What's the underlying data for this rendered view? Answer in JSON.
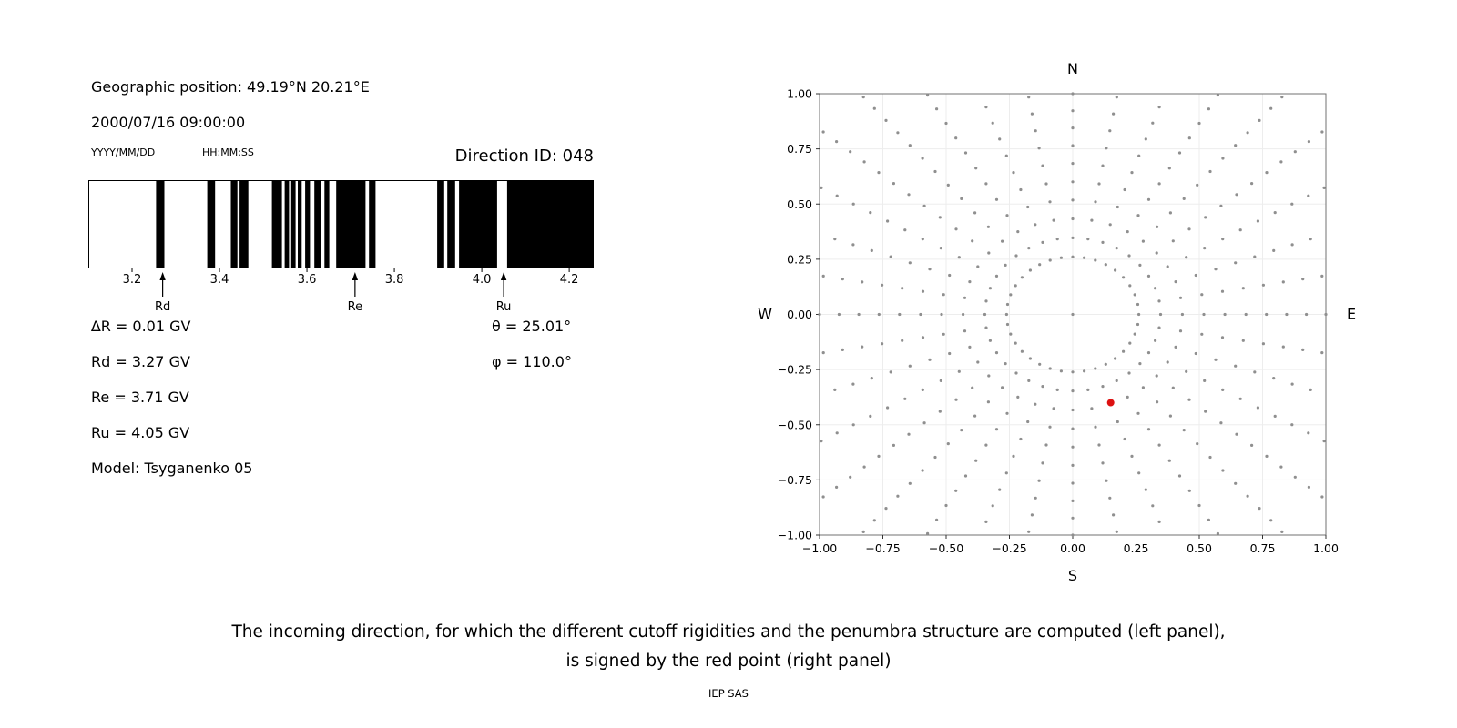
{
  "left_panel": {
    "geo_position": "Geographic position: 49.19°N 20.21°E",
    "datetime": "2000/07/16 09:00:00",
    "date_format_label": "YYYY/MM/DD",
    "time_format_label": "HH:MM:SS",
    "direction_id_title": "Direction ID: 048",
    "params_left": [
      "∆R = 0.01 GV",
      "Rd = 3.27 GV",
      "Re = 3.71 GV",
      "Ru = 4.05 GV",
      "Model: Tsyganenko 05"
    ],
    "params_right": [
      "θ = 25.01°",
      "φ = 110.0°"
    ]
  },
  "caption": {
    "line1": "The incoming direction, for which the different cutoff rigidities and the penumbra structure are computed (left panel),",
    "line2": "is signed by the red point (right panel)"
  },
  "footer_credit": "IEP SAS",
  "chart_data": [
    {
      "type": "bar",
      "title": "Direction ID: 048",
      "description": "Penumbra structure: black bands mark forbidden rigidity intervals in GV",
      "xlim": [
        3.1,
        4.256
      ],
      "xticks": [
        3.2,
        3.4,
        3.6,
        3.8,
        4.0,
        4.2
      ],
      "xtick_labels": [
        "3.2",
        "3.4",
        "3.6",
        "3.8",
        "4.0",
        "4.2"
      ],
      "black_bands_gv": [
        [
          3.255,
          3.274
        ],
        [
          3.372,
          3.39
        ],
        [
          3.426,
          3.441
        ],
        [
          3.446,
          3.466
        ],
        [
          3.52,
          3.543
        ],
        [
          3.549,
          3.559
        ],
        [
          3.564,
          3.574
        ],
        [
          3.579,
          3.588
        ],
        [
          3.596,
          3.607
        ],
        [
          3.617,
          3.632
        ],
        [
          3.64,
          3.651
        ],
        [
          3.667,
          3.734
        ],
        [
          3.742,
          3.757
        ],
        [
          3.898,
          3.914
        ],
        [
          3.921,
          3.939
        ],
        [
          3.948,
          4.035
        ],
        [
          4.058,
          4.256
        ]
      ],
      "markers": [
        {
          "label": "Rd",
          "value": 3.27
        },
        {
          "label": "Re",
          "value": 3.71
        },
        {
          "label": "Ru",
          "value": 4.05
        }
      ]
    },
    {
      "type": "scatter",
      "xlim": [
        -1,
        1
      ],
      "ylim": [
        -1,
        1
      ],
      "xticks": [
        -1,
        -0.75,
        -0.5,
        -0.25,
        0,
        0.25,
        0.5,
        0.75,
        1
      ],
      "xtick_labels": [
        "−1.00",
        "−0.75",
        "−0.50",
        "−0.25",
        "0.00",
        "0.25",
        "0.50",
        "0.75",
        "1.00"
      ],
      "yticks": [
        -1,
        -0.75,
        -0.5,
        -0.25,
        0,
        0.25,
        0.5,
        0.75,
        1
      ],
      "ytick_labels": [
        "−1.00",
        "−0.75",
        "−0.50",
        "−0.25",
        "0.00",
        "0.25",
        "0.50",
        "0.75",
        "1.00"
      ],
      "compass": {
        "top": "N",
        "bottom": "S",
        "left": "W",
        "right": "E"
      },
      "grid_color": "#ededed",
      "gray_grid": {
        "color": "#8f8f8f",
        "azimuth_step_deg": 10,
        "radii": [
          0.261,
          0.347,
          0.433,
          0.518,
          0.601,
          0.684,
          0.765,
          0.845,
          0.923,
          1.0,
          1.075,
          1.147,
          1.218,
          1.286,
          1.338,
          1.376,
          1.4,
          1.414
        ],
        "center_dot": true,
        "clip": 1.005
      },
      "red_point": {
        "x": 0.15,
        "y": -0.4,
        "color": "#dd1111"
      }
    }
  ]
}
